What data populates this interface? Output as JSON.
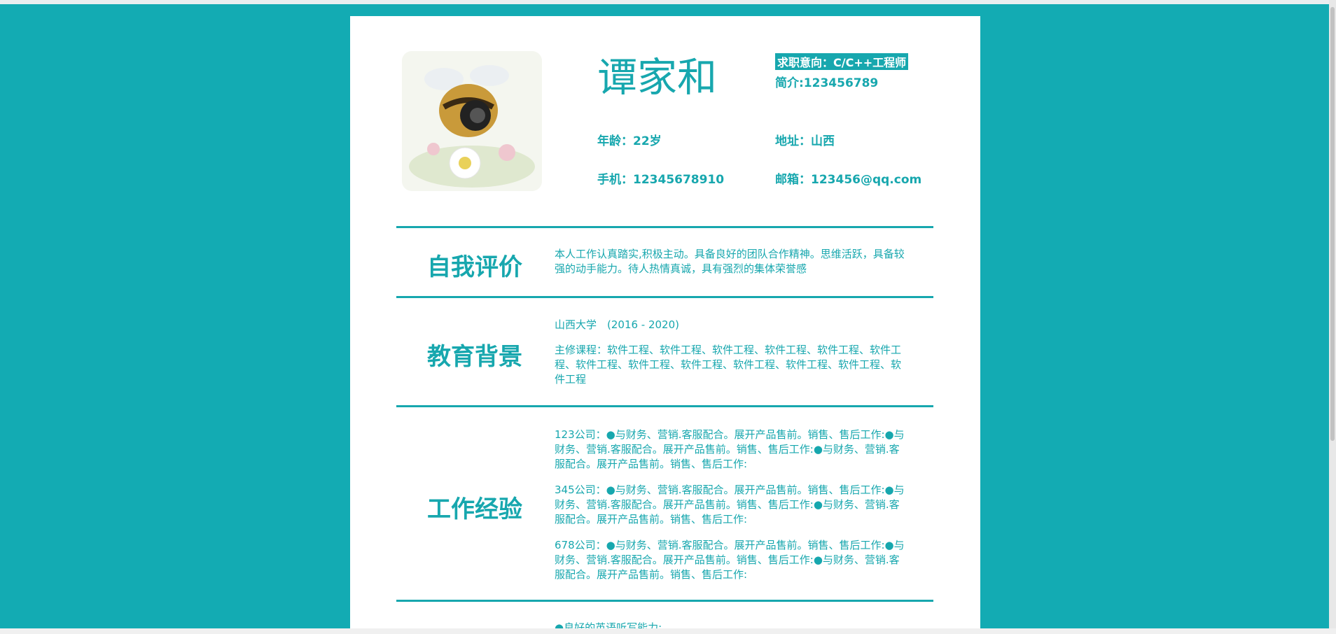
{
  "header": {
    "name": "谭家和",
    "intent": "求职意向：C/C++工程师",
    "intro": "简介:123456789",
    "age": "年龄：22岁",
    "address": "地址：山西",
    "phone": "手机：12345678910",
    "email": "邮箱：123456@qq.com"
  },
  "sections": [
    {
      "title": "自我评价",
      "items": [
        "本人工作认真踏实,积极主动。具备良好的团队合作精神。思维活跃，具备较强的动手能力。待人热情真诚，具有强烈的集体荣誉感"
      ]
    },
    {
      "title": "教育背景",
      "items": [
        "山西大学　(2016 - 2020)",
        "主修课程：软件工程、软件工程、软件工程、软件工程、软件工程、软件工程、软件工程、软件工程、软件工程、软件工程、软件工程、软件工程、软件工程"
      ]
    },
    {
      "title": "工作经验",
      "items": [
        "123公司：●与财务、营销.客服配合。展开产品售前。销售、售后工作:●与财务、营销.客服配合。展开产品售前。销售、售后工作:●与财务、营销.客服配合。展开产品售前。销售、售后工作:",
        "345公司：●与财务、营销.客服配合。展开产品售前。销售、售后工作:●与财务、营销.客服配合。展开产品售前。销售、售后工作:●与财务、营销.客服配合。展开产品售前。销售、售后工作:",
        "678公司：●与财务、营销.客服配合。展开产品售前。销售、售后工作:●与财务、营销.客服配合。展开产品售前。销售、售后工作:●与财务、营销.客服配合。展开产品售前。销售、售后工作:"
      ]
    },
    {
      "items": [
        "●良好的英语听写能力:"
      ]
    }
  ]
}
